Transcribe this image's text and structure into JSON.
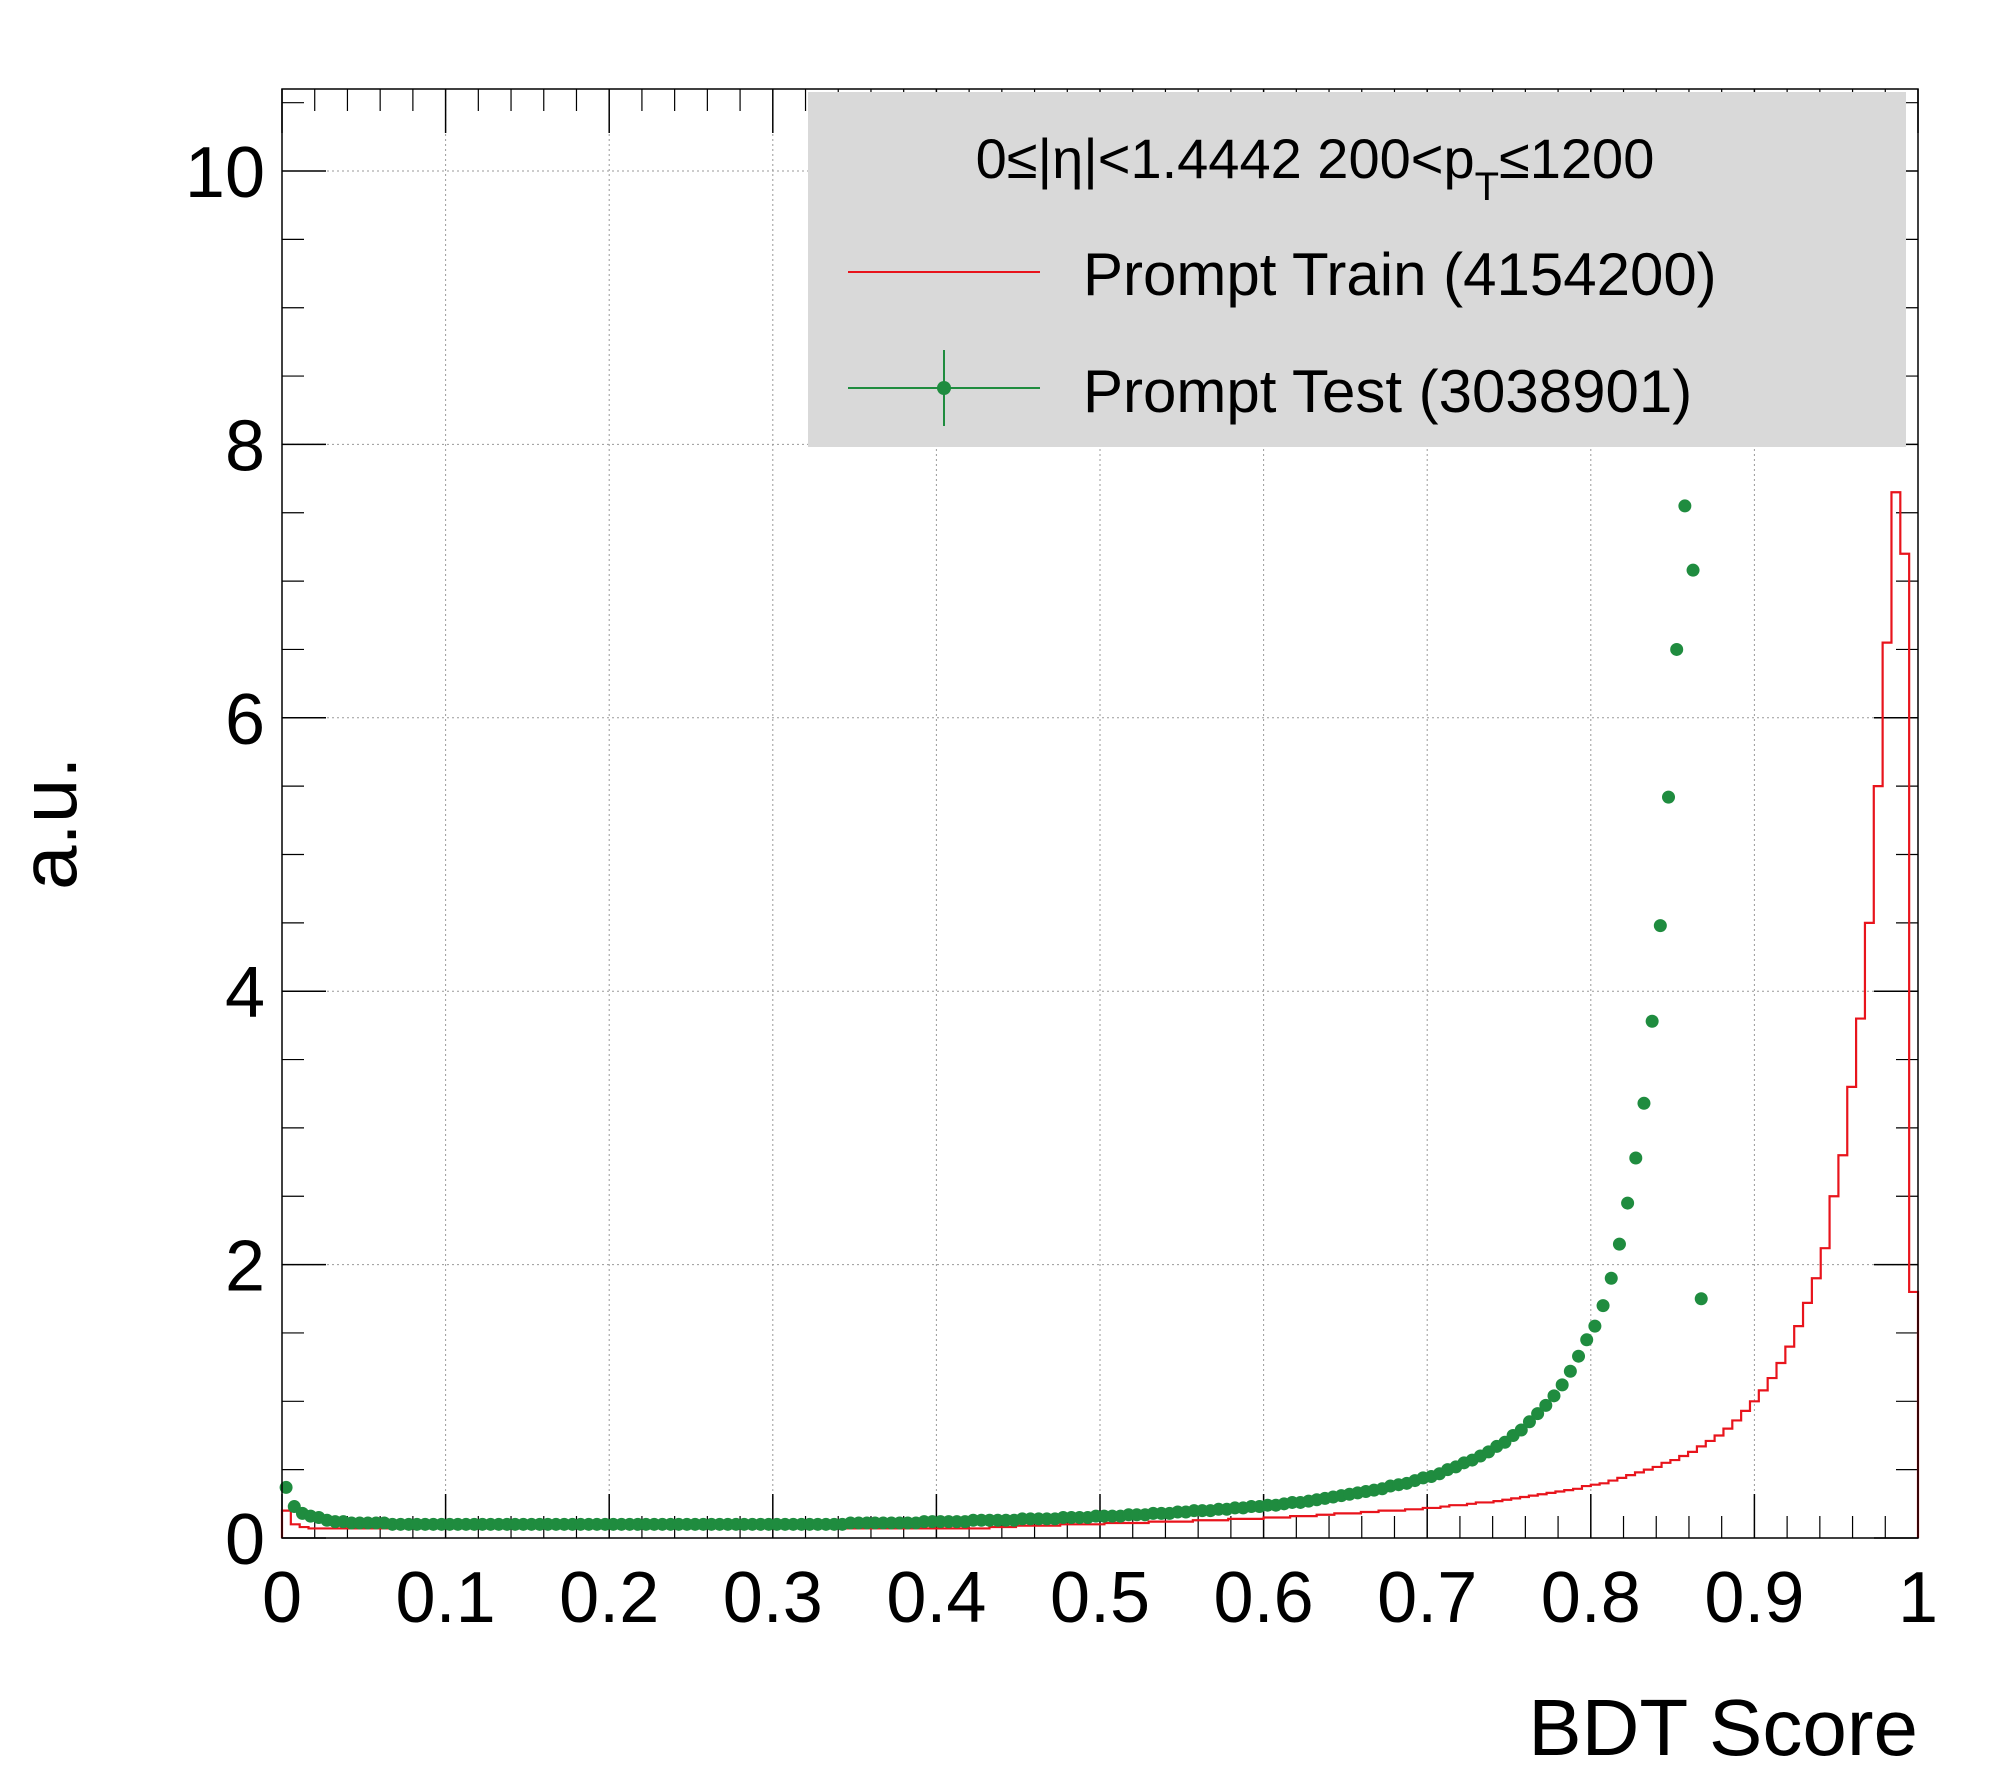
{
  "chart_data": {
    "type": "line",
    "title": "",
    "xlabel": "BDT Score",
    "ylabel": "a.u.",
    "xlim": [
      0,
      1
    ],
    "ylim": [
      0,
      10.6
    ],
    "grid": true,
    "x_ticks": [
      "0",
      "0.1",
      "0.2",
      "0.3",
      "0.4",
      "0.5",
      "0.6",
      "0.7",
      "0.8",
      "0.9",
      "1"
    ],
    "y_ticks": [
      "0",
      "2",
      "4",
      "6",
      "8",
      "10"
    ],
    "legend": {
      "placement": "top-right",
      "header_text": "0≤|η|<1.4442  200<p",
      "header_subscript": "T",
      "header_tail": "≤1200",
      "background": "#d9d9d9"
    },
    "bin_width": 0.005,
    "series": [
      {
        "name": "Prompt Train (4154200)",
        "style": "step",
        "color": "#e8141c",
        "x_from": 0.0,
        "x_to": 1.0,
        "values": [
          0.2,
          0.1,
          0.08,
          0.07,
          0.07,
          0.07,
          0.07,
          0.07,
          0.07,
          0.07,
          0.07,
          0.07,
          0.07,
          0.07,
          0.07,
          0.07,
          0.07,
          0.07,
          0.07,
          0.07,
          0.07,
          0.07,
          0.07,
          0.07,
          0.07,
          0.07,
          0.07,
          0.07,
          0.07,
          0.07,
          0.07,
          0.07,
          0.07,
          0.07,
          0.07,
          0.07,
          0.07,
          0.07,
          0.07,
          0.07,
          0.07,
          0.07,
          0.07,
          0.07,
          0.07,
          0.07,
          0.07,
          0.07,
          0.07,
          0.07,
          0.07,
          0.07,
          0.07,
          0.07,
          0.07,
          0.07,
          0.07,
          0.07,
          0.07,
          0.07,
          0.07,
          0.07,
          0.07,
          0.07,
          0.07,
          0.07,
          0.07,
          0.07,
          0.07,
          0.07,
          0.07,
          0.07,
          0.07,
          0.07,
          0.07,
          0.07,
          0.07,
          0.07,
          0.07,
          0.07,
          0.08,
          0.08,
          0.08,
          0.09,
          0.09,
          0.09,
          0.09,
          0.09,
          0.1,
          0.1,
          0.1,
          0.1,
          0.1,
          0.11,
          0.11,
          0.11,
          0.11,
          0.11,
          0.12,
          0.12,
          0.12,
          0.12,
          0.12,
          0.13,
          0.13,
          0.13,
          0.13,
          0.14,
          0.14,
          0.14,
          0.14,
          0.15,
          0.15,
          0.15,
          0.16,
          0.16,
          0.16,
          0.17,
          0.17,
          0.18,
          0.18,
          0.18,
          0.19,
          0.19,
          0.2,
          0.2,
          0.2,
          0.21,
          0.21,
          0.22,
          0.22,
          0.23,
          0.24,
          0.24,
          0.25,
          0.26,
          0.26,
          0.27,
          0.28,
          0.29,
          0.3,
          0.31,
          0.32,
          0.33,
          0.34,
          0.35,
          0.36,
          0.38,
          0.39,
          0.4,
          0.42,
          0.44,
          0.46,
          0.48,
          0.5,
          0.52,
          0.55,
          0.57,
          0.6,
          0.63,
          0.67,
          0.71,
          0.75,
          0.8,
          0.86,
          0.93,
          1.0,
          1.08,
          1.17,
          1.28,
          1.4,
          1.55,
          1.72,
          1.9,
          2.12,
          2.5,
          2.8,
          3.3,
          3.8,
          4.5,
          5.5,
          6.55,
          7.65,
          7.2,
          1.8
        ]
      },
      {
        "name": "Prompt Test (3038901)",
        "style": "markers",
        "color": "#1f8c3f",
        "x_from": 0.0025,
        "x_step": 0.005,
        "values": [
          0.37,
          0.23,
          0.18,
          0.16,
          0.15,
          0.13,
          0.12,
          0.12,
          0.11,
          0.11,
          0.11,
          0.11,
          0.11,
          0.1,
          0.1,
          0.1,
          0.1,
          0.1,
          0.1,
          0.1,
          0.1,
          0.1,
          0.1,
          0.1,
          0.1,
          0.1,
          0.1,
          0.1,
          0.1,
          0.1,
          0.1,
          0.1,
          0.1,
          0.1,
          0.1,
          0.1,
          0.1,
          0.1,
          0.1,
          0.1,
          0.1,
          0.1,
          0.1,
          0.1,
          0.1,
          0.1,
          0.1,
          0.1,
          0.1,
          0.1,
          0.1,
          0.1,
          0.1,
          0.1,
          0.1,
          0.1,
          0.1,
          0.1,
          0.1,
          0.1,
          0.1,
          0.1,
          0.1,
          0.1,
          0.1,
          0.1,
          0.1,
          0.1,
          0.1,
          0.11,
          0.11,
          0.11,
          0.11,
          0.11,
          0.11,
          0.11,
          0.11,
          0.11,
          0.12,
          0.12,
          0.12,
          0.12,
          0.12,
          0.12,
          0.13,
          0.13,
          0.13,
          0.13,
          0.13,
          0.13,
          0.14,
          0.14,
          0.14,
          0.14,
          0.14,
          0.15,
          0.15,
          0.15,
          0.15,
          0.16,
          0.16,
          0.16,
          0.16,
          0.17,
          0.17,
          0.17,
          0.18,
          0.18,
          0.18,
          0.19,
          0.19,
          0.2,
          0.2,
          0.2,
          0.21,
          0.21,
          0.22,
          0.22,
          0.23,
          0.23,
          0.24,
          0.24,
          0.25,
          0.26,
          0.26,
          0.27,
          0.28,
          0.29,
          0.3,
          0.31,
          0.32,
          0.33,
          0.34,
          0.35,
          0.36,
          0.38,
          0.39,
          0.4,
          0.42,
          0.44,
          0.45,
          0.47,
          0.5,
          0.52,
          0.55,
          0.57,
          0.6,
          0.63,
          0.67,
          0.7,
          0.75,
          0.79,
          0.85,
          0.91,
          0.97,
          1.04,
          1.12,
          1.22,
          1.33,
          1.45,
          1.55,
          1.7,
          1.9,
          2.15,
          2.45,
          2.78,
          3.18,
          3.78,
          4.48,
          5.42,
          6.5,
          7.55,
          7.08,
          1.75
        ]
      }
    ]
  }
}
